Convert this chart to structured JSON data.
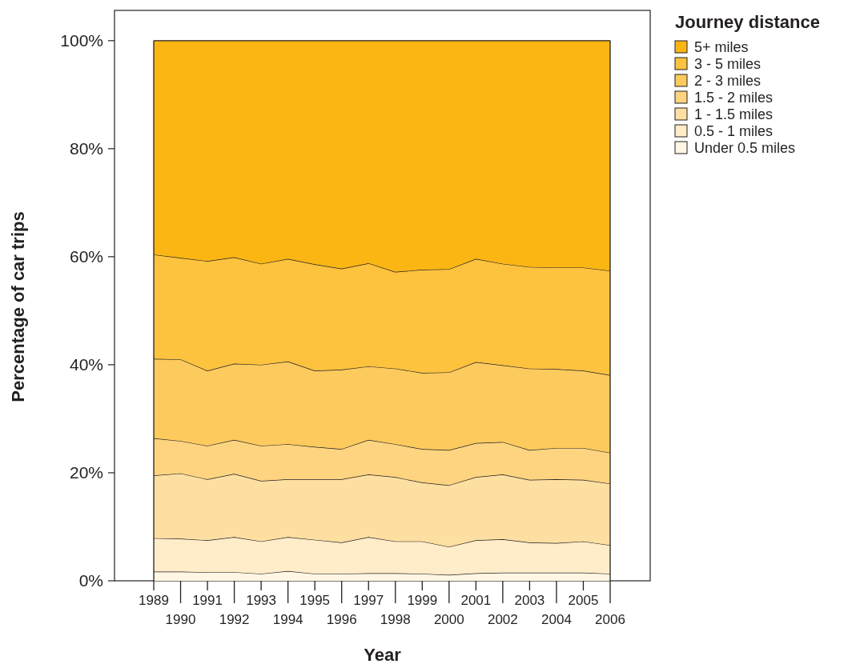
{
  "chart_data": {
    "type": "area",
    "stacked": true,
    "xlabel": "Year",
    "ylabel": "Percentage of car trips",
    "legend_title": "Journey distance",
    "legend": "top right",
    "categories": [
      "1989",
      "1990",
      "1991",
      "1992",
      "1993",
      "1994",
      "1995",
      "1996",
      "1997",
      "1998",
      "1999",
      "2000",
      "2001",
      "2002",
      "2003",
      "2004",
      "2005",
      "2006"
    ],
    "ylim": [
      0,
      105.6
    ],
    "yticks": [
      {
        "value": 0,
        "label": "0%"
      },
      {
        "value": 20,
        "label": "20%"
      },
      {
        "value": 40,
        "label": "40%"
      },
      {
        "value": 60,
        "label": "60%"
      },
      {
        "value": 80,
        "label": "80%"
      },
      {
        "value": 100,
        "label": "100%"
      }
    ],
    "series": [
      {
        "name": "Under 0.5 miles",
        "color": "#fff6e4",
        "values": [
          1.7,
          1.7,
          1.6,
          1.6,
          1.3,
          1.8,
          1.3,
          1.3,
          1.4,
          1.4,
          1.3,
          1.1,
          1.4,
          1.5,
          1.5,
          1.5,
          1.5,
          1.3
        ]
      },
      {
        "name": "0.5 - 1 miles",
        "color": "#ffecc8",
        "values": [
          6.2,
          6.1,
          5.9,
          6.5,
          6.0,
          6.3,
          6.3,
          5.8,
          6.7,
          5.9,
          6.0,
          5.2,
          6.1,
          6.2,
          5.6,
          5.5,
          5.8,
          5.3
        ]
      },
      {
        "name": "1 - 1.5 miles",
        "color": "#fedfa2",
        "values": [
          11.6,
          12.1,
          11.3,
          11.7,
          11.2,
          10.7,
          11.2,
          11.7,
          11.6,
          11.9,
          10.9,
          11.4,
          11.7,
          12.0,
          11.6,
          11.8,
          11.4,
          11.4
        ]
      },
      {
        "name": "1.5 - 2 miles",
        "color": "#fed480",
        "values": [
          6.9,
          6.0,
          6.2,
          6.3,
          6.5,
          6.5,
          6.0,
          5.6,
          6.4,
          6.1,
          6.2,
          6.5,
          6.3,
          6.0,
          5.5,
          5.8,
          5.9,
          5.7
        ]
      },
      {
        "name": "2 - 3 miles",
        "color": "#fdca5e",
        "values": [
          14.7,
          15.1,
          13.9,
          14.1,
          15.0,
          15.3,
          14.1,
          14.7,
          13.6,
          14.0,
          14.1,
          14.4,
          15.0,
          14.2,
          15.1,
          14.6,
          14.3,
          14.4
        ]
      },
      {
        "name": "3 - 5 miles",
        "color": "#fdc23e",
        "values": [
          19.3,
          18.8,
          20.3,
          19.7,
          18.7,
          19.0,
          19.7,
          18.7,
          19.1,
          17.9,
          19.1,
          19.1,
          19.1,
          18.8,
          18.8,
          18.8,
          19.1,
          19.3
        ]
      },
      {
        "name": "5+ miles",
        "color": "#fbb614",
        "values": [
          39.6,
          40.2,
          40.8,
          40.1,
          41.3,
          40.4,
          41.4,
          42.2,
          41.2,
          42.8,
          42.4,
          42.3,
          40.4,
          41.3,
          41.9,
          42.0,
          42.0,
          42.6
        ]
      }
    ]
  }
}
